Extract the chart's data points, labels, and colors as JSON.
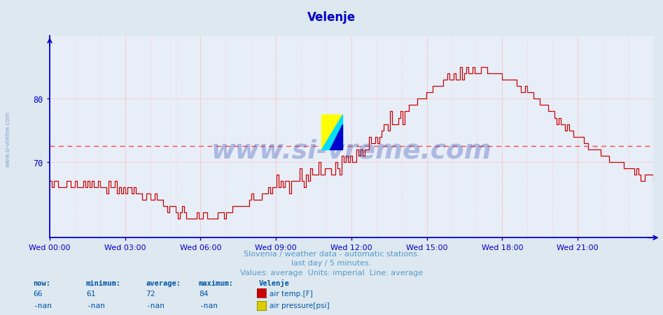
{
  "title": "Velenje",
  "title_color": "#0000cc",
  "bg_color": "#dde8f0",
  "plot_bg_color": "#e8eef8",
  "grid_color": "#ffaaaa",
  "axis_color": "#0000cc",
  "line_color": "#cc0000",
  "avg_line_color": "#ff4444",
  "avg_value": 72.5,
  "y_min": 58,
  "y_max": 90,
  "y_ticks": [
    70,
    80
  ],
  "x_tick_pos": [
    0,
    3,
    6,
    9,
    12,
    15,
    18,
    21
  ],
  "x_labels": [
    "Wed 00:00",
    "Wed 03:00",
    "Wed 06:00",
    "Wed 09:00",
    "Wed 12:00",
    "Wed 15:00",
    "Wed 18:00",
    "Wed 21:00"
  ],
  "subtitle1": "Slovenia / weather data - automatic stations.",
  "subtitle2": "last day / 5 minutes.",
  "subtitle3": "Values: average  Units: imperial  Line: average",
  "subtitle_color": "#5599cc",
  "watermark": "www.si-vreme.com",
  "watermark_color": "#1133aa",
  "watermark_alpha": 0.28,
  "sidebar_text": "www.si-vreme.com",
  "sidebar_color": "#4477cc",
  "now": "66",
  "minimum": "61",
  "average": "72",
  "maximum": "84",
  "station_name": "Velenje",
  "legend_label1": "air temp.[F]",
  "legend_color1": "#cc0000",
  "legend_label2": "air pressure[psi]",
  "legend_color2": "#ddcc00",
  "legend_outline2": "#999900",
  "footer_color": "#0055aa"
}
